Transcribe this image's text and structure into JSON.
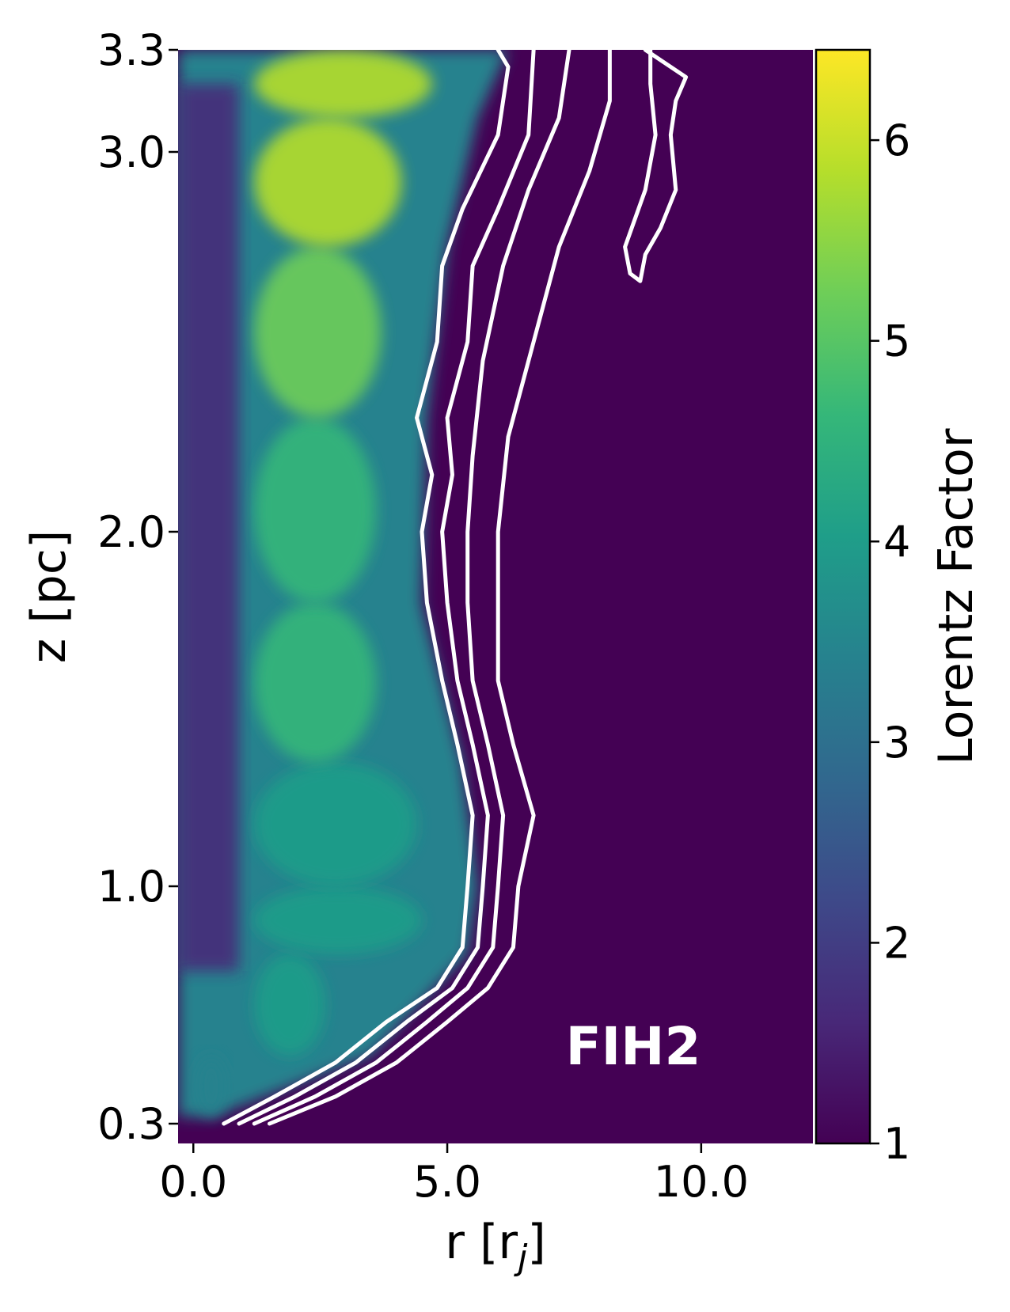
{
  "chart_data": {
    "type": "heatmap",
    "title": "",
    "xlabel": "r [r_j]",
    "xlabel_main": "r [r",
    "xlabel_sub": "j",
    "xlabel_close": "]",
    "ylabel": "z [pc]",
    "xlim": [
      -0.3,
      12.2
    ],
    "ylim": [
      0.3,
      3.3
    ],
    "x_ticks": [
      0.0,
      5.0,
      10.0
    ],
    "x_tick_labels": [
      "0.0",
      "5.0",
      "10.0"
    ],
    "y_ticks": [
      0.3,
      1.0,
      2.0,
      3.0,
      3.3
    ],
    "y_tick_labels": [
      "0.3",
      "1.0",
      "2.0",
      "3.0",
      "3.3"
    ],
    "colorbar": {
      "label": "Lorentz Factor",
      "range": [
        1,
        6.45
      ],
      "ticks": [
        1,
        2,
        3,
        4,
        5,
        6
      ],
      "tick_labels": [
        "1",
        "2",
        "3",
        "4",
        "5",
        "6"
      ],
      "colormap": "viridis",
      "colors": [
        "#440154",
        "#482878",
        "#3e4989",
        "#31688e",
        "#26828e",
        "#1f9e89",
        "#35b779",
        "#6ece58",
        "#b5de2b",
        "#fde725"
      ]
    },
    "annotation": "FIH2",
    "contour_color": "#ffffff",
    "background_color": "#440154",
    "jet_profile": [
      {
        "z": 0.32,
        "r_edge": 0.4,
        "lorentz": 3.4
      },
      {
        "z": 0.5,
        "r_edge": 3.5,
        "lorentz": 4.0
      },
      {
        "z": 0.8,
        "r_edge": 5.4,
        "lorentz": 3.8
      },
      {
        "z": 1.0,
        "r_edge": 5.6,
        "lorentz": 4.2
      },
      {
        "z": 1.35,
        "r_edge": 5.3,
        "lorentz": 4.4
      },
      {
        "z": 1.8,
        "r_edge": 4.5,
        "lorentz": 4.6
      },
      {
        "z": 2.3,
        "r_edge": 4.6,
        "lorentz": 4.9
      },
      {
        "z": 2.75,
        "r_edge": 5.0,
        "lorentz": 5.3
      },
      {
        "z": 3.1,
        "r_edge": 5.6,
        "lorentz": 6.2
      },
      {
        "z": 3.3,
        "r_edge": 6.2,
        "lorentz": 5.0
      }
    ],
    "contours": [
      {
        "points": [
          [
            0.6,
            0.3
          ],
          [
            1.6,
            0.38
          ],
          [
            2.8,
            0.48
          ],
          [
            3.8,
            0.6
          ],
          [
            4.8,
            0.7
          ],
          [
            5.3,
            0.82
          ],
          [
            5.4,
            1.0
          ],
          [
            5.5,
            1.2
          ],
          [
            5.2,
            1.4
          ],
          [
            4.9,
            1.58
          ],
          [
            4.6,
            1.8
          ],
          [
            4.5,
            2.0
          ],
          [
            4.7,
            2.15
          ],
          [
            4.4,
            2.3
          ],
          [
            4.8,
            2.5
          ],
          [
            4.9,
            2.7
          ],
          [
            5.3,
            2.85
          ],
          [
            6.0,
            3.05
          ],
          [
            6.2,
            3.25
          ],
          [
            6.0,
            3.3
          ]
        ]
      },
      {
        "points": [
          [
            0.9,
            0.3
          ],
          [
            2.0,
            0.38
          ],
          [
            3.2,
            0.48
          ],
          [
            4.2,
            0.6
          ],
          [
            5.1,
            0.7
          ],
          [
            5.6,
            0.82
          ],
          [
            5.7,
            1.0
          ],
          [
            5.8,
            1.2
          ],
          [
            5.5,
            1.4
          ],
          [
            5.2,
            1.58
          ],
          [
            5.0,
            1.8
          ],
          [
            4.9,
            2.0
          ],
          [
            5.1,
            2.15
          ],
          [
            5.0,
            2.3
          ],
          [
            5.4,
            2.5
          ],
          [
            5.5,
            2.7
          ],
          [
            6.0,
            2.85
          ],
          [
            6.6,
            3.05
          ],
          [
            6.7,
            3.3
          ]
        ]
      },
      {
        "points": [
          [
            1.2,
            0.3
          ],
          [
            2.4,
            0.38
          ],
          [
            3.6,
            0.48
          ],
          [
            4.6,
            0.6
          ],
          [
            5.4,
            0.7
          ],
          [
            5.9,
            0.82
          ],
          [
            6.0,
            1.0
          ],
          [
            6.1,
            1.2
          ],
          [
            5.8,
            1.4
          ],
          [
            5.5,
            1.58
          ],
          [
            5.4,
            1.8
          ],
          [
            5.4,
            2.0
          ],
          [
            5.5,
            2.2
          ],
          [
            5.7,
            2.45
          ],
          [
            6.1,
            2.7
          ],
          [
            6.6,
            2.9
          ],
          [
            7.2,
            3.1
          ],
          [
            7.4,
            3.3
          ]
        ]
      },
      {
        "points": [
          [
            1.5,
            0.3
          ],
          [
            2.8,
            0.38
          ],
          [
            4.0,
            0.48
          ],
          [
            5.0,
            0.6
          ],
          [
            5.8,
            0.7
          ],
          [
            6.3,
            0.82
          ],
          [
            6.4,
            1.0
          ],
          [
            6.7,
            1.2
          ],
          [
            6.3,
            1.4
          ],
          [
            6.0,
            1.58
          ],
          [
            6.0,
            1.8
          ],
          [
            6.0,
            2.0
          ],
          [
            6.2,
            2.25
          ],
          [
            6.7,
            2.5
          ],
          [
            7.2,
            2.75
          ],
          [
            7.8,
            2.95
          ],
          [
            8.2,
            3.15
          ],
          [
            8.2,
            3.3
          ]
        ]
      },
      {
        "points": [
          [
            8.9,
            3.3
          ],
          [
            9.7,
            3.22
          ],
          [
            9.5,
            3.15
          ],
          [
            9.4,
            3.05
          ],
          [
            9.5,
            2.9
          ],
          [
            9.2,
            2.8
          ],
          [
            8.9,
            2.73
          ],
          [
            8.8,
            2.66
          ],
          [
            8.6,
            2.68
          ],
          [
            8.5,
            2.75
          ],
          [
            8.9,
            2.9
          ],
          [
            9.1,
            3.05
          ],
          [
            9.0,
            3.2
          ],
          [
            9.0,
            3.3
          ]
        ]
      }
    ]
  }
}
